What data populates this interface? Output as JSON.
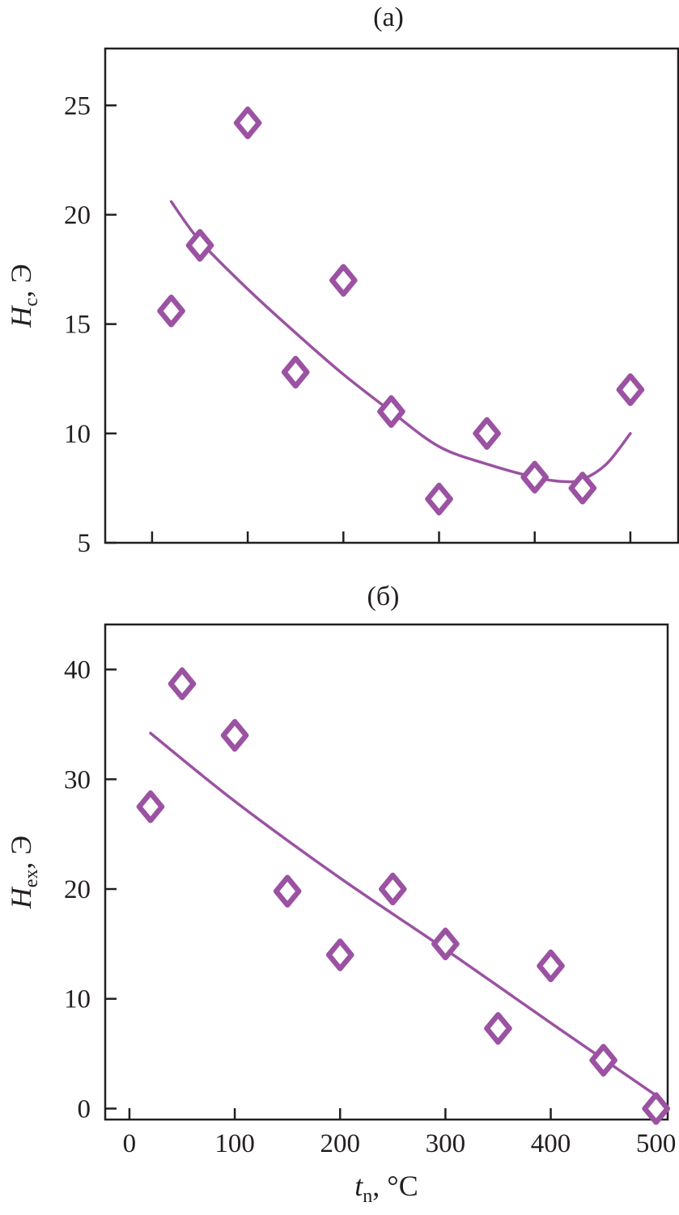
{
  "colors": {
    "series": "#9b52a2",
    "axis": "#231f20"
  },
  "chart_data": [
    {
      "type": "scatter",
      "title": "(a)",
      "ylabel": {
        "main": "H",
        "sub": "c",
        "rest": ", Э"
      },
      "xlabel": "",
      "xlim": [
        -49,
        550
      ],
      "ylim": [
        5,
        27.6
      ],
      "xticks": [
        0,
        100,
        200,
        300,
        400,
        500
      ],
      "xtick_labels_shown": false,
      "yticks": [
        5,
        10,
        15,
        20,
        25
      ],
      "ytick_labels": [
        "5",
        "10",
        "15",
        "20",
        "25"
      ],
      "grid": false,
      "marker": "diamond-open",
      "points": {
        "x": [
          20,
          50,
          100,
          150,
          200,
          250,
          300,
          350,
          400,
          450,
          500
        ],
        "y": [
          15.6,
          18.6,
          24.2,
          12.8,
          17.0,
          11.0,
          7.0,
          10.0,
          8.0,
          7.5,
          12.0
        ]
      },
      "fit_curve": {
        "x": [
          20,
          50,
          100,
          150,
          200,
          250,
          300,
          350,
          400,
          430,
          450,
          475,
          500
        ],
        "y": [
          20.6,
          18.8,
          16.6,
          14.6,
          12.7,
          11.0,
          9.4,
          8.6,
          8.0,
          7.8,
          7.9,
          8.6,
          10.0
        ]
      }
    },
    {
      "type": "scatter",
      "title": "(б)",
      "ylabel": {
        "main": "H",
        "sub": "ex",
        "rest": ", Э"
      },
      "xlabel": {
        "main": "t",
        "sub": "n",
        "rest": ", °C"
      },
      "xlim": [
        -23,
        511
      ],
      "ylim": [
        -1,
        44.1
      ],
      "xticks": [
        0,
        100,
        200,
        300,
        400,
        500
      ],
      "xtick_labels": [
        "0",
        "100",
        "200",
        "300",
        "400",
        "500"
      ],
      "yticks": [
        0,
        10,
        20,
        30,
        40
      ],
      "ytick_labels": [
        "0",
        "10",
        "20",
        "30",
        "40"
      ],
      "grid": false,
      "marker": "diamond-open",
      "points": {
        "x": [
          20,
          50,
          100,
          150,
          200,
          250,
          300,
          350,
          400,
          450,
          500
        ],
        "y": [
          27.5,
          38.7,
          34.0,
          19.8,
          14.0,
          20.0,
          15.0,
          7.3,
          13.0,
          4.4,
          0
        ]
      },
      "fit_curve": {
        "x": [
          20,
          100,
          200,
          300,
          400,
          500
        ],
        "y": [
          34.2,
          28.0,
          21.0,
          14.5,
          7.8,
          1.2
        ]
      }
    }
  ]
}
